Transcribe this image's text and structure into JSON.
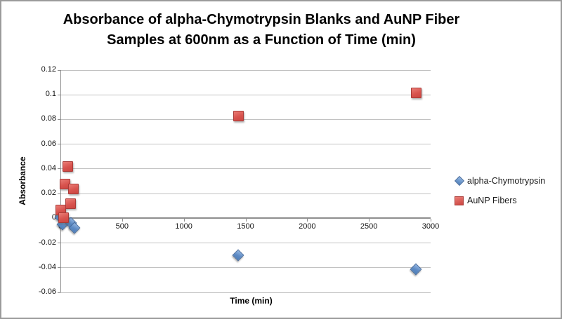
{
  "chart": {
    "title_lines": [
      "Absorbance of alpha-Chymotrypsin Blanks and AuNP Fiber",
      "Samples at 600nm as a Function of Time (min)"
    ]
  },
  "chart_data": {
    "type": "scatter",
    "title": "Absorbance of alpha-Chymotrypsin Blanks and AuNP Fiber Samples at 600nm as a Function of Time (min)",
    "xlabel": "Time (min)",
    "ylabel": "Absorbance",
    "xlim": [
      0,
      3000
    ],
    "ylim": [
      -0.06,
      0.12
    ],
    "xticks": [
      0,
      500,
      1000,
      1500,
      2000,
      2500,
      3000
    ],
    "xtick_labels": [
      "0",
      "500",
      "1000",
      "1500",
      "2000",
      "2500",
      "3000"
    ],
    "yticks": [
      0.12,
      0.1,
      0.08,
      0.06,
      0.04,
      0.02,
      0,
      -0.02,
      -0.04,
      -0.06
    ],
    "ytick_labels": [
      "0.12",
      "0.1",
      "0.08",
      "0.06",
      "0.04",
      "0.02",
      "0",
      "-0.02",
      "-0.04",
      "-0.06"
    ],
    "grid": "horizontal",
    "legend_position": "right",
    "series": [
      {
        "name": "alpha-Chymotrypsin",
        "marker": "diamond",
        "color": "#4F81BD",
        "points": [
          [
            0,
            0.001
          ],
          [
            15,
            -0.005
          ],
          [
            85,
            -0.004
          ],
          [
            115,
            -0.008
          ],
          [
            1440,
            -0.03
          ],
          [
            2880,
            -0.041
          ]
        ]
      },
      {
        "name": "AuNP Fibers",
        "marker": "square",
        "color": "#C0504D",
        "points": [
          [
            0,
            0.007
          ],
          [
            20,
            0.001
          ],
          [
            35,
            0.028
          ],
          [
            55,
            0.042
          ],
          [
            80,
            0.012
          ],
          [
            105,
            0.024
          ],
          [
            1440,
            0.083
          ],
          [
            2880,
            0.102
          ]
        ]
      }
    ]
  }
}
